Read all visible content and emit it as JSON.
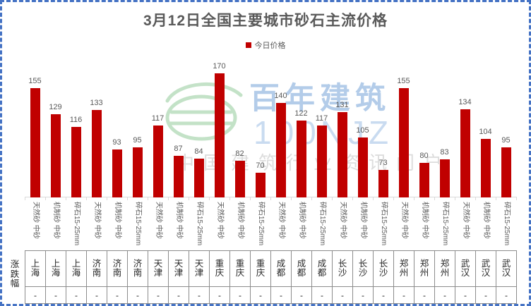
{
  "app": {
    "selection_border_color": "#4472C4",
    "background": "#FFFFFF"
  },
  "legend": {
    "label": "今日价格"
  },
  "chart_data": {
    "type": "bar",
    "title": "3月12日全国主要城市砂石主流价格",
    "legend": [
      "今日价格"
    ],
    "legend_position": "top-center",
    "bar_color": "#C00000",
    "value_label_color": "#595959",
    "title_color": "#595959",
    "grid": false,
    "y_axis_visible": false,
    "ylim": [
      45,
      180
    ],
    "x_tick_rotation": 90,
    "groups": [
      {
        "city": "上海",
        "bars": [
          {
            "label": "天然砂 中砂",
            "value": 155
          },
          {
            "label": "机制砂 中砂",
            "value": 129
          },
          {
            "label": "碎石15-25mm",
            "value": 116
          }
        ]
      },
      {
        "city": "济南",
        "bars": [
          {
            "label": "天然砂 中砂",
            "value": 133
          },
          {
            "label": "机制砂 中砂",
            "value": 93
          },
          {
            "label": "碎石15-25mm",
            "value": 95
          }
        ]
      },
      {
        "city": "天津",
        "bars": [
          {
            "label": "天然砂 中砂",
            "value": 117
          },
          {
            "label": "机制砂 中砂",
            "value": 87
          },
          {
            "label": "碎石15-25mm",
            "value": 84
          }
        ]
      },
      {
        "city": "重庆",
        "bars": [
          {
            "label": "天然砂 中砂",
            "value": 170
          },
          {
            "label": "机制砂 中砂",
            "value": 82
          },
          {
            "label": "碎石15-25mm",
            "value": 70
          }
        ]
      },
      {
        "city": "成都",
        "bars": [
          {
            "label": "天然砂 中砂",
            "value": 140
          },
          {
            "label": "机制砂 中砂",
            "value": 122
          },
          {
            "label": "碎石15-25mm",
            "value": 117
          }
        ]
      },
      {
        "city": "长沙",
        "bars": [
          {
            "label": "天然砂 中砂",
            "value": 131
          },
          {
            "label": "机制砂 中砂",
            "value": 105
          },
          {
            "label": "碎石15-25mm",
            "value": 73
          }
        ]
      },
      {
        "city": "郑州",
        "bars": [
          {
            "label": "天然砂 中砂",
            "value": 155
          },
          {
            "label": "机制砂 中砂",
            "value": 80
          },
          {
            "label": "碎石15-25mm",
            "value": 83
          }
        ]
      },
      {
        "city": "武汉",
        "bars": [
          {
            "label": "天然砂 中砂",
            "value": 134
          },
          {
            "label": "机制砂 中砂",
            "value": 104
          },
          {
            "label": "碎石15-25mm",
            "value": 95
          }
        ]
      }
    ]
  },
  "table": {
    "row_header": "涨跌幅",
    "change_values": [
      "-",
      "-",
      "-",
      "-",
      "-",
      "-",
      "-",
      "-",
      "-",
      "-",
      "-",
      "-",
      "-",
      "-",
      "-",
      "-",
      "-",
      "-",
      "-",
      "-",
      "-",
      "-",
      "-",
      "-"
    ]
  },
  "watermark": {
    "brand": "百年建筑",
    "code": "100NJZ",
    "slogan": "中国建筑行业资讯门户",
    "brand_color": "#B3CCE9",
    "slogan_color": "#DDDDDD",
    "logo_color": "#9CCFA3"
  }
}
